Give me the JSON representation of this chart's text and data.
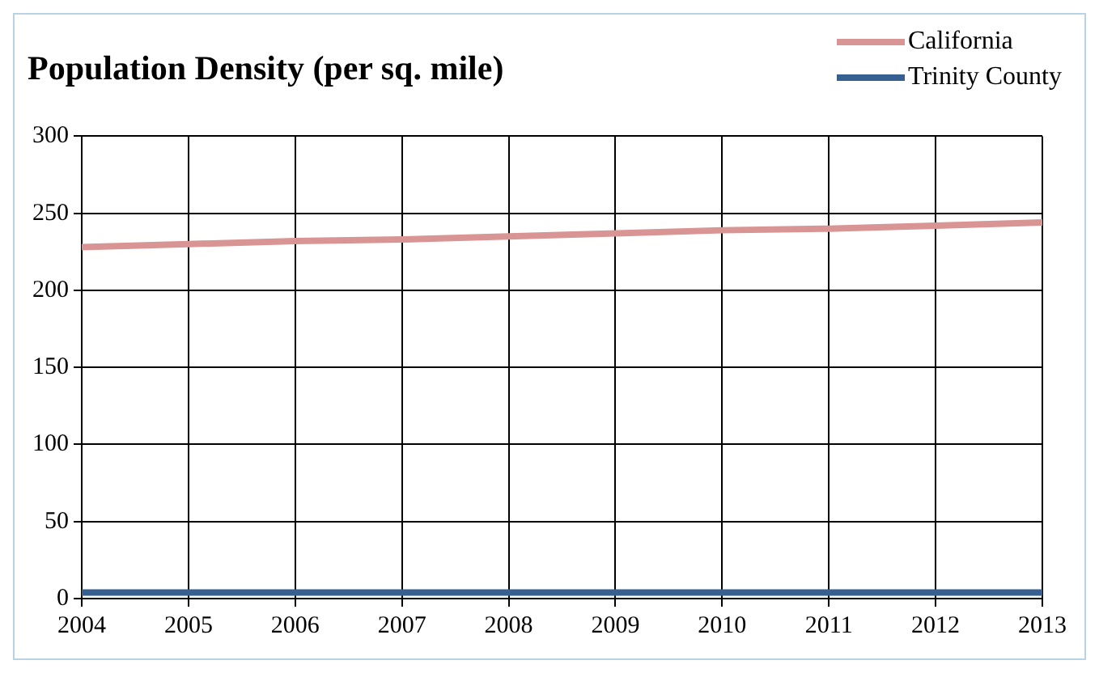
{
  "chart_data": {
    "type": "line",
    "title": "Population Density (per sq. mile)",
    "x": [
      2004,
      2005,
      2006,
      2007,
      2008,
      2009,
      2010,
      2011,
      2012,
      2013
    ],
    "series": [
      {
        "name": "California",
        "color": "#d99594",
        "values": [
          228,
          230,
          232,
          233,
          235,
          237,
          239,
          240,
          242,
          244
        ]
      },
      {
        "name": "Trinity County",
        "color": "#376092",
        "values": [
          4,
          4,
          4,
          4,
          4,
          4,
          4,
          4,
          4,
          4
        ]
      }
    ],
    "xlim": [
      2004,
      2013
    ],
    "xticks": [
      2004,
      2005,
      2006,
      2007,
      2008,
      2009,
      2010,
      2011,
      2012,
      2013
    ],
    "ylim": [
      0,
      300
    ],
    "yticks": [
      0,
      50,
      100,
      150,
      200,
      250,
      300
    ],
    "grid": true,
    "legend": "top right",
    "marker": "none",
    "line_style": "solid"
  }
}
